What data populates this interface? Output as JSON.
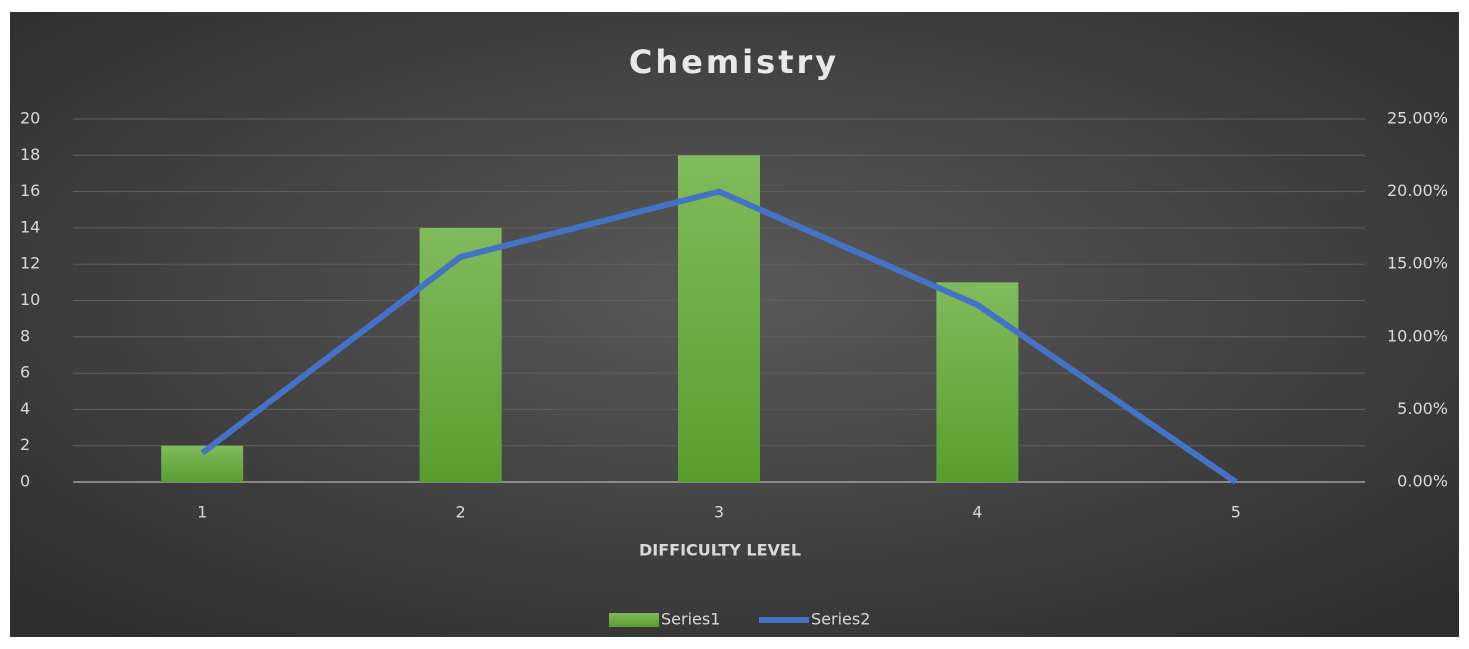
{
  "chart_data": {
    "type": "combo",
    "title": "Chemistry",
    "x_label": "DIFFICULTY LEVEL",
    "categories": [
      "1",
      "2",
      "3",
      "4",
      "5"
    ],
    "series": [
      {
        "name": "Series1",
        "type": "bar",
        "color": "#6aad42",
        "values": [
          2,
          14,
          18,
          11,
          0
        ]
      },
      {
        "name": "Series2",
        "type": "line",
        "color": "#4472c4",
        "axis": "y2",
        "values": [
          2.0,
          15.5,
          20.0,
          12.2,
          0
        ]
      }
    ],
    "ylim": [
      0,
      20
    ],
    "yticks": [
      0,
      2,
      4,
      6,
      8,
      10,
      12,
      14,
      16,
      18,
      20
    ],
    "y2lim": [
      0,
      25
    ],
    "y2ticks": [
      {
        "value": 0,
        "label": "0.00%"
      },
      {
        "value": 5,
        "label": "5.00%"
      },
      {
        "value": 10,
        "label": "10.00%"
      },
      {
        "value": 15,
        "label": "15.00%"
      },
      {
        "value": 20,
        "label": "20.00%"
      },
      {
        "value": 25,
        "label": "25.00%"
      }
    ],
    "grid": true,
    "legend": "bottom"
  }
}
